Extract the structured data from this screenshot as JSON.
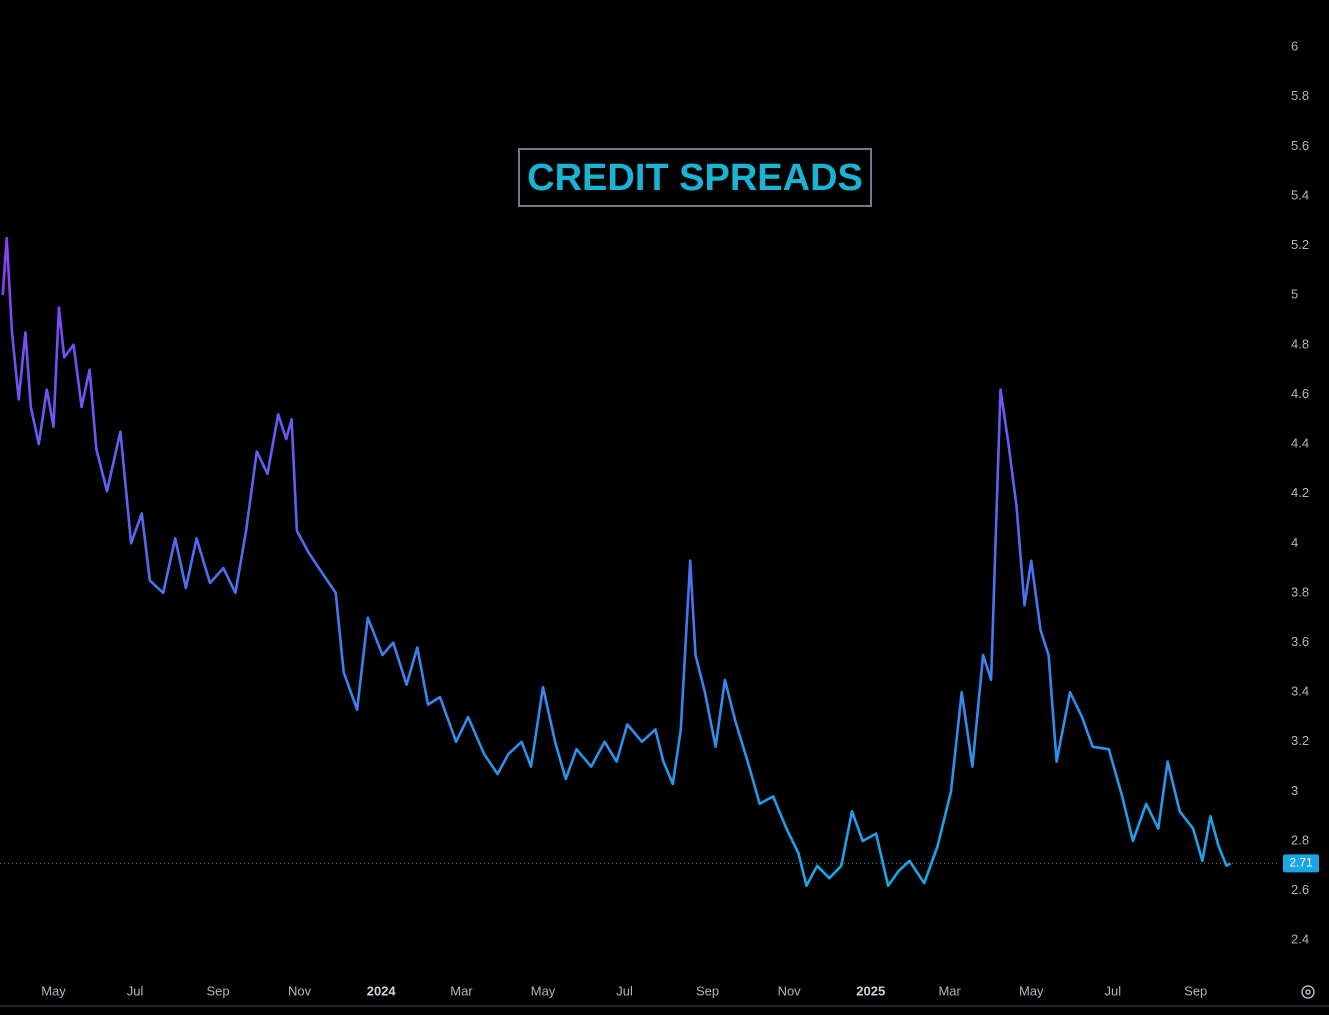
{
  "chart_data": {
    "type": "line",
    "title": "CREDIT SPREADS",
    "series": [
      {
        "colors": [
          "#8b3ff5",
          "#4f6df2",
          "#1aa6e6"
        ],
        "x": [
          "2023-03-24",
          "2023-03-27",
          "2023-03-31",
          "2023-04-05",
          "2023-04-10",
          "2023-04-14",
          "2023-04-20",
          "2023-04-26",
          "2023-05-01",
          "2023-05-05",
          "2023-05-09",
          "2023-05-16",
          "2023-05-22",
          "2023-05-28",
          "2023-06-02",
          "2023-06-10",
          "2023-06-20",
          "2023-06-28",
          "2023-07-06",
          "2023-07-12",
          "2023-07-22",
          "2023-07-31",
          "2023-08-08",
          "2023-08-16",
          "2023-08-26",
          "2023-09-05",
          "2023-09-14",
          "2023-09-22",
          "2023-09-30",
          "2023-10-08",
          "2023-10-16",
          "2023-10-22",
          "2023-10-26",
          "2023-10-30",
          "2023-11-08",
          "2023-11-18",
          "2023-11-28",
          "2023-12-04",
          "2023-12-14",
          "2023-12-22",
          "2024-01-02",
          "2024-01-10",
          "2024-01-20",
          "2024-01-28",
          "2024-02-05",
          "2024-02-14",
          "2024-02-26",
          "2024-03-06",
          "2024-03-18",
          "2024-03-28",
          "2024-04-05",
          "2024-04-15",
          "2024-04-22",
          "2024-05-01",
          "2024-05-10",
          "2024-05-18",
          "2024-05-26",
          "2024-06-06",
          "2024-06-16",
          "2024-06-25",
          "2024-07-03",
          "2024-07-14",
          "2024-07-24",
          "2024-07-30",
          "2024-08-06",
          "2024-08-12",
          "2024-08-19",
          "2024-08-23",
          "2024-08-30",
          "2024-09-07",
          "2024-09-14",
          "2024-09-22",
          "2024-10-01",
          "2024-10-10",
          "2024-10-20",
          "2024-10-30",
          "2024-11-08",
          "2024-11-14",
          "2024-11-22",
          "2024-12-01",
          "2024-12-10",
          "2024-12-18",
          "2024-12-26",
          "2025-01-05",
          "2025-01-14",
          "2025-01-22",
          "2025-01-30",
          "2025-02-10",
          "2025-02-20",
          "2025-03-02",
          "2025-03-10",
          "2025-03-18",
          "2025-03-26",
          "2025-04-01",
          "2025-04-08",
          "2025-04-14",
          "2025-04-20",
          "2025-04-26",
          "2025-05-01",
          "2025-05-08",
          "2025-05-14",
          "2025-05-20",
          "2025-05-30",
          "2025-06-08",
          "2025-06-16",
          "2025-06-28",
          "2025-07-08",
          "2025-07-16",
          "2025-07-26",
          "2025-08-04",
          "2025-08-11",
          "2025-08-20",
          "2025-08-30",
          "2025-09-06",
          "2025-09-12",
          "2025-09-18",
          "2025-09-24",
          "2025-09-27"
        ],
        "values": [
          5.0,
          5.23,
          4.85,
          4.58,
          4.85,
          4.55,
          4.4,
          4.62,
          4.47,
          4.95,
          4.75,
          4.8,
          4.55,
          4.7,
          4.38,
          4.21,
          4.45,
          4.0,
          4.12,
          3.85,
          3.8,
          4.02,
          3.82,
          4.02,
          3.84,
          3.9,
          3.8,
          4.05,
          4.37,
          4.28,
          4.52,
          4.42,
          4.5,
          4.05,
          3.96,
          3.88,
          3.8,
          3.48,
          3.33,
          3.7,
          3.55,
          3.6,
          3.43,
          3.58,
          3.35,
          3.38,
          3.2,
          3.3,
          3.15,
          3.07,
          3.15,
          3.2,
          3.1,
          3.42,
          3.2,
          3.05,
          3.17,
          3.1,
          3.2,
          3.12,
          3.27,
          3.2,
          3.25,
          3.12,
          3.03,
          3.25,
          3.93,
          3.55,
          3.4,
          3.18,
          3.45,
          3.28,
          3.12,
          2.95,
          2.98,
          2.85,
          2.75,
          2.62,
          2.7,
          2.65,
          2.7,
          2.92,
          2.8,
          2.83,
          2.62,
          2.68,
          2.72,
          2.63,
          2.78,
          3.0,
          3.4,
          3.1,
          3.55,
          3.45,
          4.62,
          4.4,
          4.15,
          3.75,
          3.93,
          3.65,
          3.55,
          3.12,
          3.4,
          3.3,
          3.18,
          3.17,
          2.98,
          2.8,
          2.95,
          2.85,
          3.12,
          2.92,
          2.85,
          2.72,
          2.9,
          2.78,
          2.7,
          2.71
        ]
      }
    ],
    "xlim": [
      "2023-03-22",
      "2025-11-03"
    ],
    "xticks": [
      {
        "value": "2023-05-01",
        "label": "May"
      },
      {
        "value": "2023-07-01",
        "label": "Jul"
      },
      {
        "value": "2023-09-01",
        "label": "Sep"
      },
      {
        "value": "2023-11-01",
        "label": "Nov"
      },
      {
        "value": "2024-01-01",
        "label": "2024"
      },
      {
        "value": "2024-03-01",
        "label": "Mar"
      },
      {
        "value": "2024-05-01",
        "label": "May"
      },
      {
        "value": "2024-07-01",
        "label": "Jul"
      },
      {
        "value": "2024-09-01",
        "label": "Sep"
      },
      {
        "value": "2024-11-01",
        "label": "Nov"
      },
      {
        "value": "2025-01-01",
        "label": "2025"
      },
      {
        "value": "2025-03-01",
        "label": "Mar"
      },
      {
        "value": "2025-05-01",
        "label": "May"
      },
      {
        "value": "2025-07-01",
        "label": "Jul"
      },
      {
        "value": "2025-09-01",
        "label": "Sep"
      }
    ],
    "ylim": [
      2.26,
      6.19
    ],
    "yticks": [
      2.4,
      2.6,
      2.8,
      3,
      3.2,
      3.4,
      3.6,
      3.8,
      4,
      4.2,
      4.4,
      4.6,
      4.8,
      5,
      5.2,
      5.4,
      5.6,
      5.8,
      6
    ],
    "grid": false
  }
}
